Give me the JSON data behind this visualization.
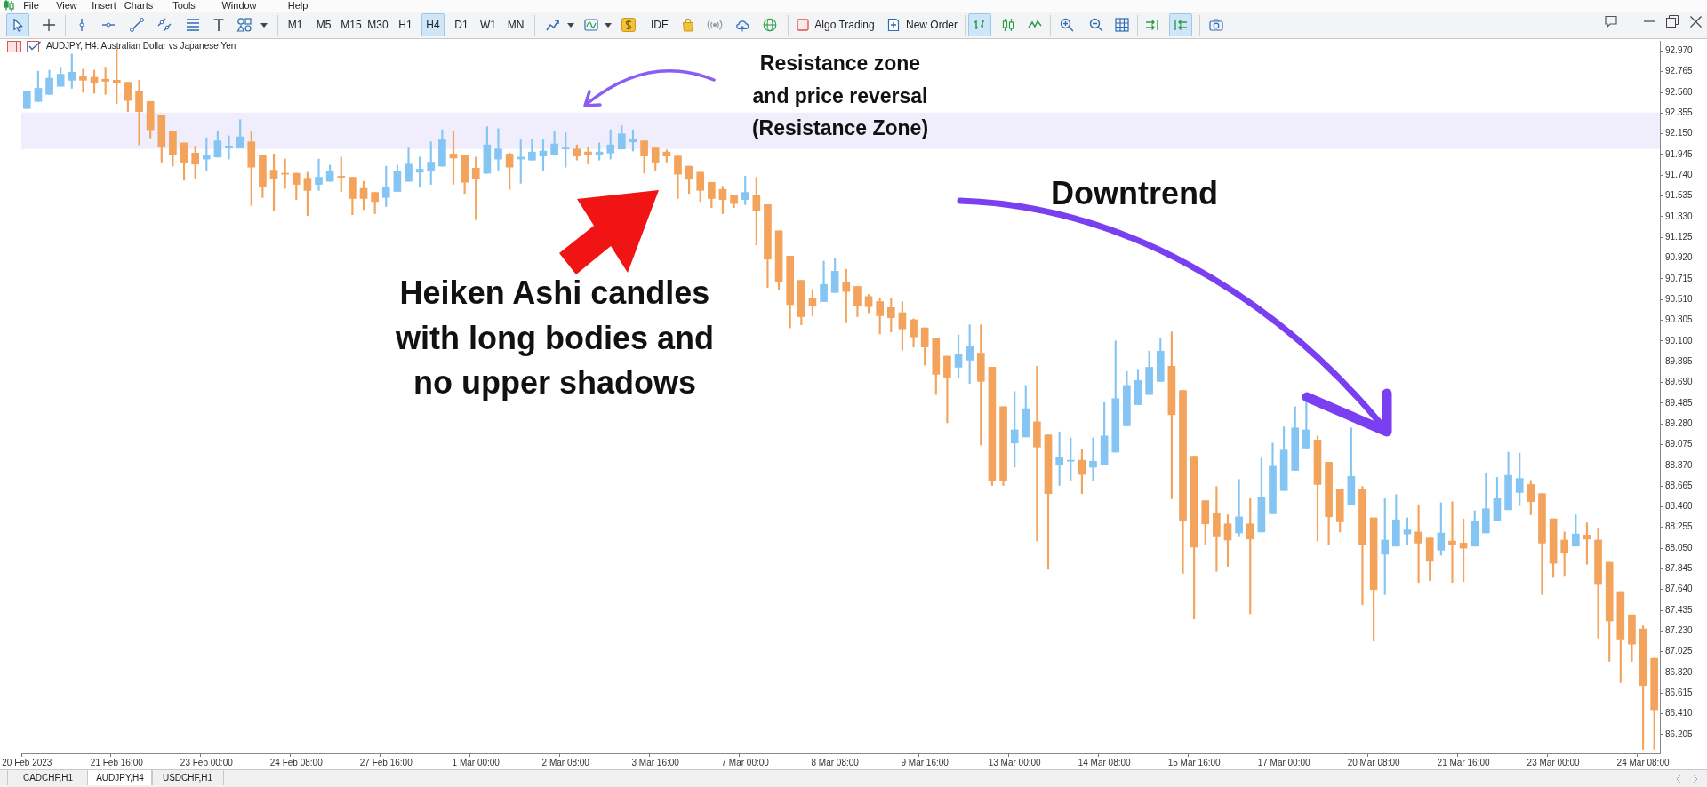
{
  "chart_data": {
    "type": "candlestick",
    "title": "AUDJPY, H4: Australian Dollar vs Japanese Yen",
    "categories": [
      "20 Feb 2023",
      null,
      null,
      null,
      null,
      null,
      null,
      null,
      "21 Feb 16:00",
      null,
      null,
      null,
      null,
      null,
      null,
      null,
      "23 Feb 00:00",
      null,
      null,
      null,
      null,
      null,
      null,
      null,
      "24 Feb 08:00",
      null,
      null,
      null,
      null,
      null,
      null,
      null,
      "27 Feb 16:00",
      null,
      null,
      null,
      null,
      null,
      null,
      null,
      "1 Mar 00:00",
      null,
      null,
      null,
      null,
      null,
      null,
      null,
      "2 Mar 08:00",
      null,
      null,
      null,
      null,
      null,
      null,
      null,
      "3 Mar 16:00",
      null,
      null,
      null,
      null,
      null,
      null,
      null,
      "7 Mar 00:00",
      null,
      null,
      null,
      null,
      null,
      null,
      null,
      "8 Mar 08:00",
      null,
      null,
      null,
      null,
      null,
      null,
      null,
      "9 Mar 16:00",
      null,
      null,
      null,
      null,
      null,
      null,
      null,
      "13 Mar 00:00",
      null,
      null,
      null,
      null,
      null,
      null,
      null,
      "14 Mar 08:00",
      null,
      null,
      null,
      null,
      null,
      null,
      null,
      "15 Mar 16:00",
      null,
      null,
      null,
      null,
      null,
      null,
      null,
      "17 Mar 00:00",
      null,
      null,
      null,
      null,
      null,
      null,
      null,
      "20 Mar 08:00",
      null,
      null,
      null,
      null,
      null,
      null,
      null,
      "21 Mar 16:00",
      null,
      null,
      null,
      null,
      null,
      null,
      null,
      "23 Mar 00:00",
      null,
      null,
      null,
      null,
      null,
      null,
      null,
      "24 Mar 08:00",
      null
    ],
    "ohlc": [
      [
        92.4,
        92.57,
        92.4,
        92.57
      ],
      [
        92.47,
        92.77,
        92.47,
        92.6
      ],
      [
        92.54,
        92.78,
        92.54,
        92.7
      ],
      [
        92.62,
        92.81,
        92.62,
        92.74
      ],
      [
        92.68,
        92.94,
        92.6,
        92.76
      ],
      [
        92.72,
        92.79,
        92.56,
        92.68
      ],
      [
        92.71,
        92.78,
        92.55,
        92.65
      ],
      [
        92.69,
        92.81,
        92.54,
        92.67
      ],
      [
        92.68,
        92.99,
        92.45,
        92.65
      ],
      [
        92.66,
        92.66,
        92.37,
        92.48
      ],
      [
        92.57,
        92.68,
        92.04,
        92.37
      ],
      [
        92.47,
        92.47,
        92.11,
        92.19
      ],
      [
        92.33,
        92.33,
        91.87,
        92.02
      ],
      [
        92.17,
        92.17,
        91.83,
        91.94
      ],
      [
        92.06,
        92.06,
        91.69,
        91.86
      ],
      [
        91.96,
        92.03,
        91.71,
        91.85
      ],
      [
        91.9,
        92.11,
        91.78,
        91.94
      ],
      [
        91.92,
        92.18,
        91.92,
        92.08
      ],
      [
        92.01,
        92.13,
        91.9,
        92.03
      ],
      [
        92.01,
        92.29,
        92.01,
        92.12
      ],
      [
        92.07,
        92.17,
        91.44,
        91.82
      ],
      [
        91.94,
        91.94,
        91.52,
        91.63
      ],
      [
        91.79,
        91.95,
        91.39,
        91.71
      ],
      [
        91.76,
        91.9,
        91.61,
        91.75
      ],
      [
        91.76,
        91.76,
        91.5,
        91.65
      ],
      [
        91.71,
        91.77,
        91.34,
        91.59
      ],
      [
        91.65,
        91.9,
        91.59,
        91.72
      ],
      [
        91.68,
        91.84,
        91.68,
        91.78
      ],
      [
        91.73,
        91.92,
        91.58,
        91.72
      ],
      [
        91.72,
        91.72,
        91.35,
        91.51
      ],
      [
        91.61,
        91.68,
        91.4,
        91.51
      ],
      [
        91.57,
        91.57,
        91.36,
        91.48
      ],
      [
        91.52,
        91.83,
        91.43,
        91.62
      ],
      [
        91.58,
        91.84,
        91.58,
        91.78
      ],
      [
        91.68,
        92.01,
        91.68,
        91.85
      ],
      [
        91.77,
        91.92,
        91.62,
        91.8
      ],
      [
        91.78,
        92.07,
        91.65,
        91.87
      ],
      [
        91.83,
        92.19,
        91.83,
        92.09
      ],
      [
        91.95,
        92.17,
        91.65,
        91.91
      ],
      [
        91.94,
        91.94,
        91.56,
        91.67
      ],
      [
        91.81,
        91.92,
        91.3,
        91.71
      ],
      [
        91.76,
        92.22,
        91.76,
        92.04
      ],
      [
        91.9,
        92.2,
        91.79,
        92.0
      ],
      [
        91.95,
        91.96,
        91.6,
        91.82
      ],
      [
        91.9,
        92.09,
        91.66,
        91.92
      ],
      [
        91.89,
        92.1,
        91.89,
        91.97
      ],
      [
        91.93,
        92.09,
        91.79,
        91.98
      ],
      [
        91.94,
        92.17,
        91.94,
        92.05
      ],
      [
        92.0,
        92.16,
        91.82,
        92.01
      ],
      [
        92.0,
        92.04,
        91.89,
        91.93
      ],
      [
        91.97,
        92.02,
        91.85,
        91.94
      ],
      [
        91.94,
        92.06,
        91.89,
        91.97
      ],
      [
        91.96,
        92.19,
        91.9,
        92.04
      ],
      [
        92.0,
        92.23,
        92.0,
        92.15
      ],
      [
        92.07,
        92.19,
        91.98,
        92.1
      ],
      [
        92.08,
        92.08,
        91.76,
        91.93
      ],
      [
        92.01,
        92.01,
        91.79,
        91.87
      ],
      [
        91.97,
        91.99,
        91.87,
        91.93
      ],
      [
        91.93,
        91.93,
        91.51,
        91.75
      ],
      [
        91.83,
        91.83,
        91.56,
        91.7
      ],
      [
        91.77,
        91.77,
        91.48,
        91.59
      ],
      [
        91.67,
        91.67,
        91.42,
        91.51
      ],
      [
        91.6,
        91.63,
        91.36,
        91.5
      ],
      [
        91.54,
        91.54,
        91.42,
        91.46
      ],
      [
        91.5,
        91.73,
        91.45,
        91.57
      ],
      [
        91.54,
        91.72,
        91.05,
        91.39
      ],
      [
        91.45,
        91.45,
        90.63,
        90.91
      ],
      [
        91.19,
        91.19,
        90.61,
        90.69
      ],
      [
        90.94,
        90.94,
        90.23,
        90.46
      ],
      [
        90.7,
        90.7,
        90.26,
        90.34
      ],
      [
        90.52,
        90.61,
        90.35,
        90.45
      ],
      [
        90.49,
        90.89,
        90.49,
        90.66
      ],
      [
        90.58,
        90.92,
        90.58,
        90.79
      ],
      [
        90.68,
        90.81,
        90.28,
        90.59
      ],
      [
        90.64,
        90.64,
        90.34,
        90.45
      ],
      [
        90.54,
        90.56,
        90.38,
        90.44
      ],
      [
        90.49,
        90.52,
        90.17,
        90.35
      ],
      [
        90.43,
        90.52,
        90.19,
        90.33
      ],
      [
        90.38,
        90.49,
        90.01,
        90.22
      ],
      [
        90.31,
        90.32,
        90.04,
        90.14
      ],
      [
        90.23,
        90.23,
        89.86,
        90.04
      ],
      [
        90.13,
        90.13,
        89.57,
        89.77
      ],
      [
        89.95,
        89.95,
        89.29,
        89.74
      ],
      [
        89.84,
        90.16,
        89.74,
        89.97
      ],
      [
        89.91,
        90.26,
        89.68,
        90.05
      ],
      [
        89.98,
        90.26,
        89.07,
        89.7
      ],
      [
        89.84,
        89.84,
        88.67,
        88.72
      ],
      [
        89.45,
        89.45,
        88.67,
        88.72
      ],
      [
        89.09,
        89.6,
        88.85,
        89.22
      ],
      [
        89.15,
        89.66,
        89.15,
        89.43
      ],
      [
        89.3,
        89.85,
        88.12,
        89.05
      ],
      [
        89.17,
        89.17,
        87.84,
        88.59
      ],
      [
        88.87,
        89.2,
        88.67,
        88.95
      ],
      [
        88.91,
        89.14,
        88.72,
        88.92
      ],
      [
        88.92,
        89.03,
        88.59,
        88.78
      ],
      [
        88.85,
        89.14,
        88.72,
        88.91
      ],
      [
        88.88,
        89.49,
        88.88,
        89.16
      ],
      [
        89.0,
        90.1,
        89.0,
        89.53
      ],
      [
        89.26,
        89.8,
        89.26,
        89.66
      ],
      [
        89.47,
        89.82,
        89.47,
        89.71
      ],
      [
        89.57,
        90.0,
        89.57,
        89.84
      ],
      [
        89.7,
        90.13,
        89.7,
        90.0
      ],
      [
        89.85,
        90.19,
        88.54,
        89.37
      ],
      [
        89.61,
        89.61,
        87.8,
        88.32
      ],
      [
        88.96,
        88.96,
        87.35,
        88.06
      ],
      [
        88.52,
        88.52,
        88.08,
        88.29
      ],
      [
        88.4,
        88.66,
        87.82,
        88.17
      ],
      [
        88.29,
        88.38,
        87.87,
        88.13
      ],
      [
        88.2,
        88.73,
        88.17,
        88.36
      ],
      [
        88.29,
        88.54,
        87.4,
        88.14
      ],
      [
        88.21,
        88.94,
        88.21,
        88.55
      ],
      [
        88.39,
        89.09,
        88.39,
        88.86
      ],
      [
        88.62,
        89.25,
        88.62,
        89.02
      ],
      [
        88.82,
        89.45,
        88.82,
        89.24
      ],
      [
        89.04,
        89.51,
        89.04,
        89.22
      ],
      [
        89.12,
        89.16,
        88.12,
        88.68
      ],
      [
        88.9,
        88.9,
        88.08,
        88.36
      ],
      [
        88.63,
        88.63,
        88.21,
        88.31
      ],
      [
        88.48,
        89.24,
        88.48,
        88.76
      ],
      [
        88.63,
        88.66,
        87.49,
        88.08
      ],
      [
        88.35,
        88.35,
        87.13,
        87.64
      ],
      [
        87.99,
        88.54,
        87.59,
        88.13
      ],
      [
        88.07,
        88.58,
        88.07,
        88.33
      ],
      [
        88.19,
        88.35,
        88.08,
        88.23
      ],
      [
        88.21,
        88.48,
        87.71,
        88.1
      ],
      [
        88.15,
        88.15,
        87.73,
        87.92
      ],
      [
        88.03,
        88.5,
        87.98,
        88.2
      ],
      [
        88.12,
        88.51,
        87.71,
        88.08
      ],
      [
        88.1,
        88.34,
        87.72,
        88.05
      ],
      [
        88.07,
        88.42,
        88.07,
        88.32
      ],
      [
        88.2,
        88.79,
        88.2,
        88.44
      ],
      [
        88.32,
        88.75,
        88.32,
        88.54
      ],
      [
        88.43,
        89.0,
        88.43,
        88.77
      ],
      [
        88.6,
        88.99,
        88.47,
        88.74
      ],
      [
        88.68,
        88.72,
        88.38,
        88.51
      ],
      [
        88.59,
        88.59,
        87.59,
        88.1
      ],
      [
        88.34,
        88.34,
        87.76,
        87.9
      ],
      [
        88.13,
        88.21,
        87.77,
        88.0
      ],
      [
        88.07,
        88.38,
        88.07,
        88.19
      ],
      [
        88.18,
        88.3,
        87.89,
        88.14
      ],
      [
        88.13,
        88.25,
        87.16,
        87.69
      ],
      [
        87.91,
        87.91,
        86.93,
        87.33
      ],
      [
        87.62,
        87.62,
        86.72,
        87.15
      ],
      [
        87.39,
        87.39,
        86.93,
        87.1
      ],
      [
        87.25,
        87.28,
        86.06,
        86.69
      ],
      [
        86.96,
        86.96,
        86.06,
        86.45
      ]
    ],
    "colors": [
      "#85c5f3",
      "#85c5f3",
      "#85c5f3",
      "#85c5f3",
      "#85c5f3",
      "#f3a35b",
      "#f3a35b",
      "#f3a35b",
      "#f3a35b",
      "#f3a35b",
      "#f3a35b",
      "#f3a35b",
      "#f3a35b",
      "#f3a35b",
      "#f3a35b",
      "#f3a35b",
      "#85c5f3",
      "#85c5f3",
      "#85c5f3",
      "#85c5f3",
      "#f3a35b",
      "#f3a35b",
      "#f3a35b",
      "#f3a35b",
      "#f3a35b",
      "#f3a35b",
      "#85c5f3",
      "#85c5f3",
      "#f3a35b",
      "#f3a35b",
      "#f3a35b",
      "#f3a35b",
      "#85c5f3",
      "#85c5f3",
      "#85c5f3",
      "#85c5f3",
      "#85c5f3",
      "#85c5f3",
      "#f3a35b",
      "#f3a35b",
      "#f3a35b",
      "#85c5f3",
      "#85c5f3",
      "#f3a35b",
      "#85c5f3",
      "#85c5f3",
      "#85c5f3",
      "#85c5f3",
      "#85c5f3",
      "#f3a35b",
      "#f3a35b",
      "#85c5f3",
      "#85c5f3",
      "#85c5f3",
      "#85c5f3",
      "#f3a35b",
      "#f3a35b",
      "#f3a35b",
      "#f3a35b",
      "#f3a35b",
      "#f3a35b",
      "#f3a35b",
      "#f3a35b",
      "#f3a35b",
      "#85c5f3",
      "#f3a35b",
      "#f3a35b",
      "#f3a35b",
      "#f3a35b",
      "#f3a35b",
      "#f3a35b",
      "#85c5f3",
      "#85c5f3",
      "#f3a35b",
      "#f3a35b",
      "#f3a35b",
      "#f3a35b",
      "#f3a35b",
      "#f3a35b",
      "#f3a35b",
      "#f3a35b",
      "#f3a35b",
      "#f3a35b",
      "#85c5f3",
      "#85c5f3",
      "#f3a35b",
      "#f3a35b",
      "#f3a35b",
      "#85c5f3",
      "#85c5f3",
      "#f3a35b",
      "#f3a35b",
      "#85c5f3",
      "#85c5f3",
      "#f3a35b",
      "#85c5f3",
      "#85c5f3",
      "#85c5f3",
      "#85c5f3",
      "#85c5f3",
      "#85c5f3",
      "#85c5f3",
      "#f3a35b",
      "#f3a35b",
      "#f3a35b",
      "#f3a35b",
      "#f3a35b",
      "#f3a35b",
      "#85c5f3",
      "#f3a35b",
      "#85c5f3",
      "#85c5f3",
      "#85c5f3",
      "#85c5f3",
      "#85c5f3",
      "#f3a35b",
      "#f3a35b",
      "#f3a35b",
      "#85c5f3",
      "#f3a35b",
      "#f3a35b",
      "#85c5f3",
      "#85c5f3",
      "#85c5f3",
      "#f3a35b",
      "#f3a35b",
      "#85c5f3",
      "#f3a35b",
      "#f3a35b",
      "#85c5f3",
      "#85c5f3",
      "#85c5f3",
      "#85c5f3",
      "#85c5f3",
      "#f3a35b",
      "#f3a35b",
      "#f3a35b",
      "#f3a35b",
      "#85c5f3",
      "#f3a35b",
      "#f3a35b",
      "#f3a35b",
      "#f3a35b",
      "#f3a35b",
      "#f3a35b",
      "#f3a35b"
    ],
    "ylim": [
      86.02,
      93.07
    ],
    "yticks": [
      {
        "value": 92.97,
        "label": "92.970"
      },
      92.765,
      {
        "value": 92.56,
        "label": "92.560"
      },
      92.355,
      {
        "value": 92.15,
        "label": "92.150"
      },
      91.945,
      {
        "value": 91.74,
        "label": "91.740"
      },
      91.535,
      {
        "value": 91.33,
        "label": "91.330"
      },
      91.125,
      {
        "value": 90.92,
        "label": "90.920"
      },
      90.715,
      {
        "value": 90.51,
        "label": "90.510"
      },
      90.305,
      {
        "value": 90.1,
        "label": "90.100"
      },
      89.895,
      {
        "value": 89.69,
        "label": "89.690"
      },
      89.485,
      {
        "value": 89.28,
        "label": "89.280"
      },
      89.075,
      {
        "value": 88.87,
        "label": "88.870"
      },
      88.665,
      {
        "value": 88.46,
        "label": "88.460"
      },
      88.255,
      {
        "value": 88.05,
        "label": "88.050"
      },
      87.845,
      {
        "value": 87.64,
        "label": "87.640"
      },
      87.435,
      {
        "value": 87.23,
        "label": "87.230"
      },
      87.025,
      {
        "value": 86.82,
        "label": "86.820"
      },
      86.615,
      {
        "value": 86.41,
        "label": "86.410"
      },
      86.205
    ],
    "bands": [
      {
        "axis": "y",
        "from": 92.0,
        "to": 92.36,
        "color": "#f0eefc"
      }
    ],
    "annotations": [
      "Resistance zone\nand price reversal\n(Resistance Zone)",
      "Downtrend",
      "Heiken Ashi candles\nwith long bodies and\nno upper shadows",
      "File",
      "View",
      "Insert",
      "Charts",
      "Tools",
      "Window",
      "Help",
      "M1",
      "M5",
      "M15",
      "M30",
      "H1",
      "H4",
      "D1",
      "W1",
      "MN",
      "IDE",
      "Algo Trading",
      "New Order",
      "CADCHF,H1",
      "AUDJPY,H4",
      "USDCHF,H1"
    ]
  }
}
